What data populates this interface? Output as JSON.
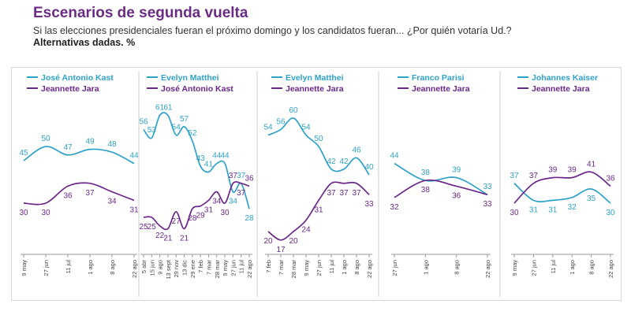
{
  "title": "Escenarios de segunda vuelta",
  "subtitle": "Si las elecciones presidenciales fueran el próximo domingo y los candidatos fueran... ¿Por quién votaría Ud.?",
  "note": "Alternativas dadas. %",
  "colors": {
    "teal": "#2ea2c8",
    "purple": "#6b2789",
    "title": "#6b2d84",
    "divider": "#cfcfcf"
  },
  "chart_data": [
    {
      "type": "line",
      "x": [
        "9 may",
        "27 jun",
        "11 jul",
        "1 ago",
        "8 ago",
        "22 ago"
      ],
      "series": [
        {
          "name": "José Antonio Kast",
          "values": [
            45,
            50,
            47,
            49,
            48,
            44
          ]
        },
        {
          "name": "Jeannette Jara",
          "values": [
            30,
            30,
            36,
            37,
            34,
            31
          ]
        }
      ]
    },
    {
      "type": "line",
      "x": [
        "5 abr",
        "15 jun",
        "9 ago",
        "13 sept",
        "29 nov",
        "13 dic",
        "29 ene",
        "7 feb",
        "7 mar",
        "28 mar",
        "9 may",
        "27 jun",
        "11 jul",
        "22 ago"
      ],
      "series": [
        {
          "name": "Evelyn Matthei",
          "values": [
            56,
            53,
            61,
            61,
            54,
            57,
            52,
            43,
            41,
            44,
            44,
            34,
            37,
            28
          ]
        },
        {
          "name": "José Antonio Kast",
          "values": [
            25,
            25,
            22,
            21,
            27,
            21,
            28,
            29,
            31,
            34,
            30,
            37,
            37,
            36
          ]
        }
      ]
    },
    {
      "type": "line",
      "x": [
        "7 feb",
        "7 mar",
        "28 mar",
        "9 may",
        "27 jun",
        "11 jul",
        "1 ago",
        "8 ago",
        "22 ago"
      ],
      "series": [
        {
          "name": "Evelyn Matthei",
          "values": [
            54,
            56,
            60,
            54,
            50,
            42,
            42,
            46,
            40
          ]
        },
        {
          "name": "Jeannette Jara",
          "values": [
            20,
            17,
            20,
            24,
            31,
            37,
            37,
            37,
            33
          ]
        }
      ]
    },
    {
      "type": "line",
      "x": [
        "27 jun",
        "1 ago",
        "8 ago",
        "22 ago"
      ],
      "series": [
        {
          "name": "Franco Parisi",
          "values": [
            44,
            38,
            39,
            33
          ]
        },
        {
          "name": "Jeannette Jara",
          "values": [
            32,
            38,
            36,
            33
          ]
        }
      ]
    },
    {
      "type": "line",
      "x": [
        "9 may",
        "27 jun",
        "11 jul",
        "1 ago",
        "8 ago",
        "22 ago"
      ],
      "series": [
        {
          "name": "Johannes Kaiser",
          "values": [
            37,
            31,
            31,
            32,
            35,
            30
          ]
        },
        {
          "name": "Jeannette Jara",
          "values": [
            30,
            37,
            39,
            39,
            41,
            36
          ]
        }
      ]
    }
  ]
}
